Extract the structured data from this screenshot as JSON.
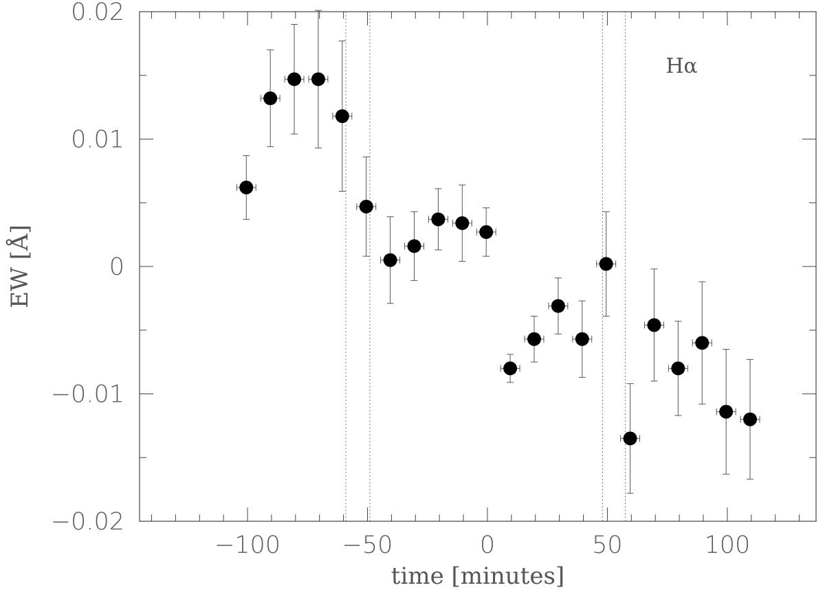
{
  "chart_data": {
    "type": "scatter",
    "title": "",
    "xlabel": "time [minutes]",
    "ylabel": "EW [Å]",
    "annotation": "Hα",
    "xlim": [
      -145,
      137
    ],
    "ylim": [
      -0.02,
      0.02
    ],
    "x_ticks": [
      -100,
      -50,
      0,
      50,
      100
    ],
    "x_tick_labels": [
      "−100",
      "−50",
      "0",
      "50",
      "100"
    ],
    "y_ticks": [
      -0.02,
      -0.01,
      0,
      0.01,
      0.02
    ],
    "y_tick_labels": [
      "−0.02",
      "−0.01",
      "0",
      "0.01",
      "0.02"
    ],
    "vertical_lines": [
      -59,
      -49,
      48,
      57.5
    ],
    "grid": false,
    "colors": {
      "marker": "#000000",
      "errorbar": "#555555",
      "axis": "#444444",
      "vline": "#777777"
    },
    "series": [
      {
        "points": [
          {
            "x": -100.5,
            "y": 0.0062,
            "xerr": 4,
            "yerr_lo": 0.0025,
            "yerr_hi": 0.0025
          },
          {
            "x": -90.5,
            "y": 0.0132,
            "xerr": 4,
            "yerr_lo": 0.0038,
            "yerr_hi": 0.0038
          },
          {
            "x": -80.5,
            "y": 0.0147,
            "xerr": 4,
            "yerr_lo": 0.0043,
            "yerr_hi": 0.0043
          },
          {
            "x": -70.5,
            "y": 0.0147,
            "xerr": 4,
            "yerr_lo": 0.0054,
            "yerr_hi": 0.0054
          },
          {
            "x": -60.5,
            "y": 0.0118,
            "xerr": 4,
            "yerr_lo": 0.0059,
            "yerr_hi": 0.0059
          },
          {
            "x": -50.5,
            "y": 0.0047,
            "xerr": 4,
            "yerr_lo": 0.0039,
            "yerr_hi": 0.0039
          },
          {
            "x": -40.5,
            "y": 0.0005,
            "xerr": 4,
            "yerr_lo": 0.0034,
            "yerr_hi": 0.0034
          },
          {
            "x": -30.5,
            "y": 0.0016,
            "xerr": 4,
            "yerr_lo": 0.0027,
            "yerr_hi": 0.0027
          },
          {
            "x": -20.5,
            "y": 0.0037,
            "xerr": 4,
            "yerr_lo": 0.0024,
            "yerr_hi": 0.0024
          },
          {
            "x": -10.5,
            "y": 0.0034,
            "xerr": 4,
            "yerr_lo": 0.003,
            "yerr_hi": 0.003
          },
          {
            "x": -0.5,
            "y": 0.0027,
            "xerr": 4,
            "yerr_lo": 0.0019,
            "yerr_hi": 0.0019
          },
          {
            "x": 9.5,
            "y": -0.008,
            "xerr": 4,
            "yerr_lo": 0.0011,
            "yerr_hi": 0.0011
          },
          {
            "x": 19.5,
            "y": -0.0057,
            "xerr": 4,
            "yerr_lo": 0.0018,
            "yerr_hi": 0.0018
          },
          {
            "x": 29.5,
            "y": -0.0031,
            "xerr": 4,
            "yerr_lo": 0.0022,
            "yerr_hi": 0.0022
          },
          {
            "x": 39.5,
            "y": -0.0057,
            "xerr": 4,
            "yerr_lo": 0.003,
            "yerr_hi": 0.003
          },
          {
            "x": 49.5,
            "y": 0.0002,
            "xerr": 4,
            "yerr_lo": 0.0041,
            "yerr_hi": 0.0041
          },
          {
            "x": 59.5,
            "y": -0.0135,
            "xerr": 4,
            "yerr_lo": 0.0043,
            "yerr_hi": 0.0043
          },
          {
            "x": 69.5,
            "y": -0.0046,
            "xerr": 4,
            "yerr_lo": 0.0044,
            "yerr_hi": 0.0044
          },
          {
            "x": 79.5,
            "y": -0.008,
            "xerr": 4,
            "yerr_lo": 0.0037,
            "yerr_hi": 0.0037
          },
          {
            "x": 89.5,
            "y": -0.006,
            "xerr": 4,
            "yerr_lo": 0.0048,
            "yerr_hi": 0.0048
          },
          {
            "x": 99.5,
            "y": -0.0114,
            "xerr": 4,
            "yerr_lo": 0.0049,
            "yerr_hi": 0.0049
          },
          {
            "x": 109.5,
            "y": -0.012,
            "xerr": 4,
            "yerr_lo": 0.0047,
            "yerr_hi": 0.0047
          }
        ]
      }
    ]
  }
}
